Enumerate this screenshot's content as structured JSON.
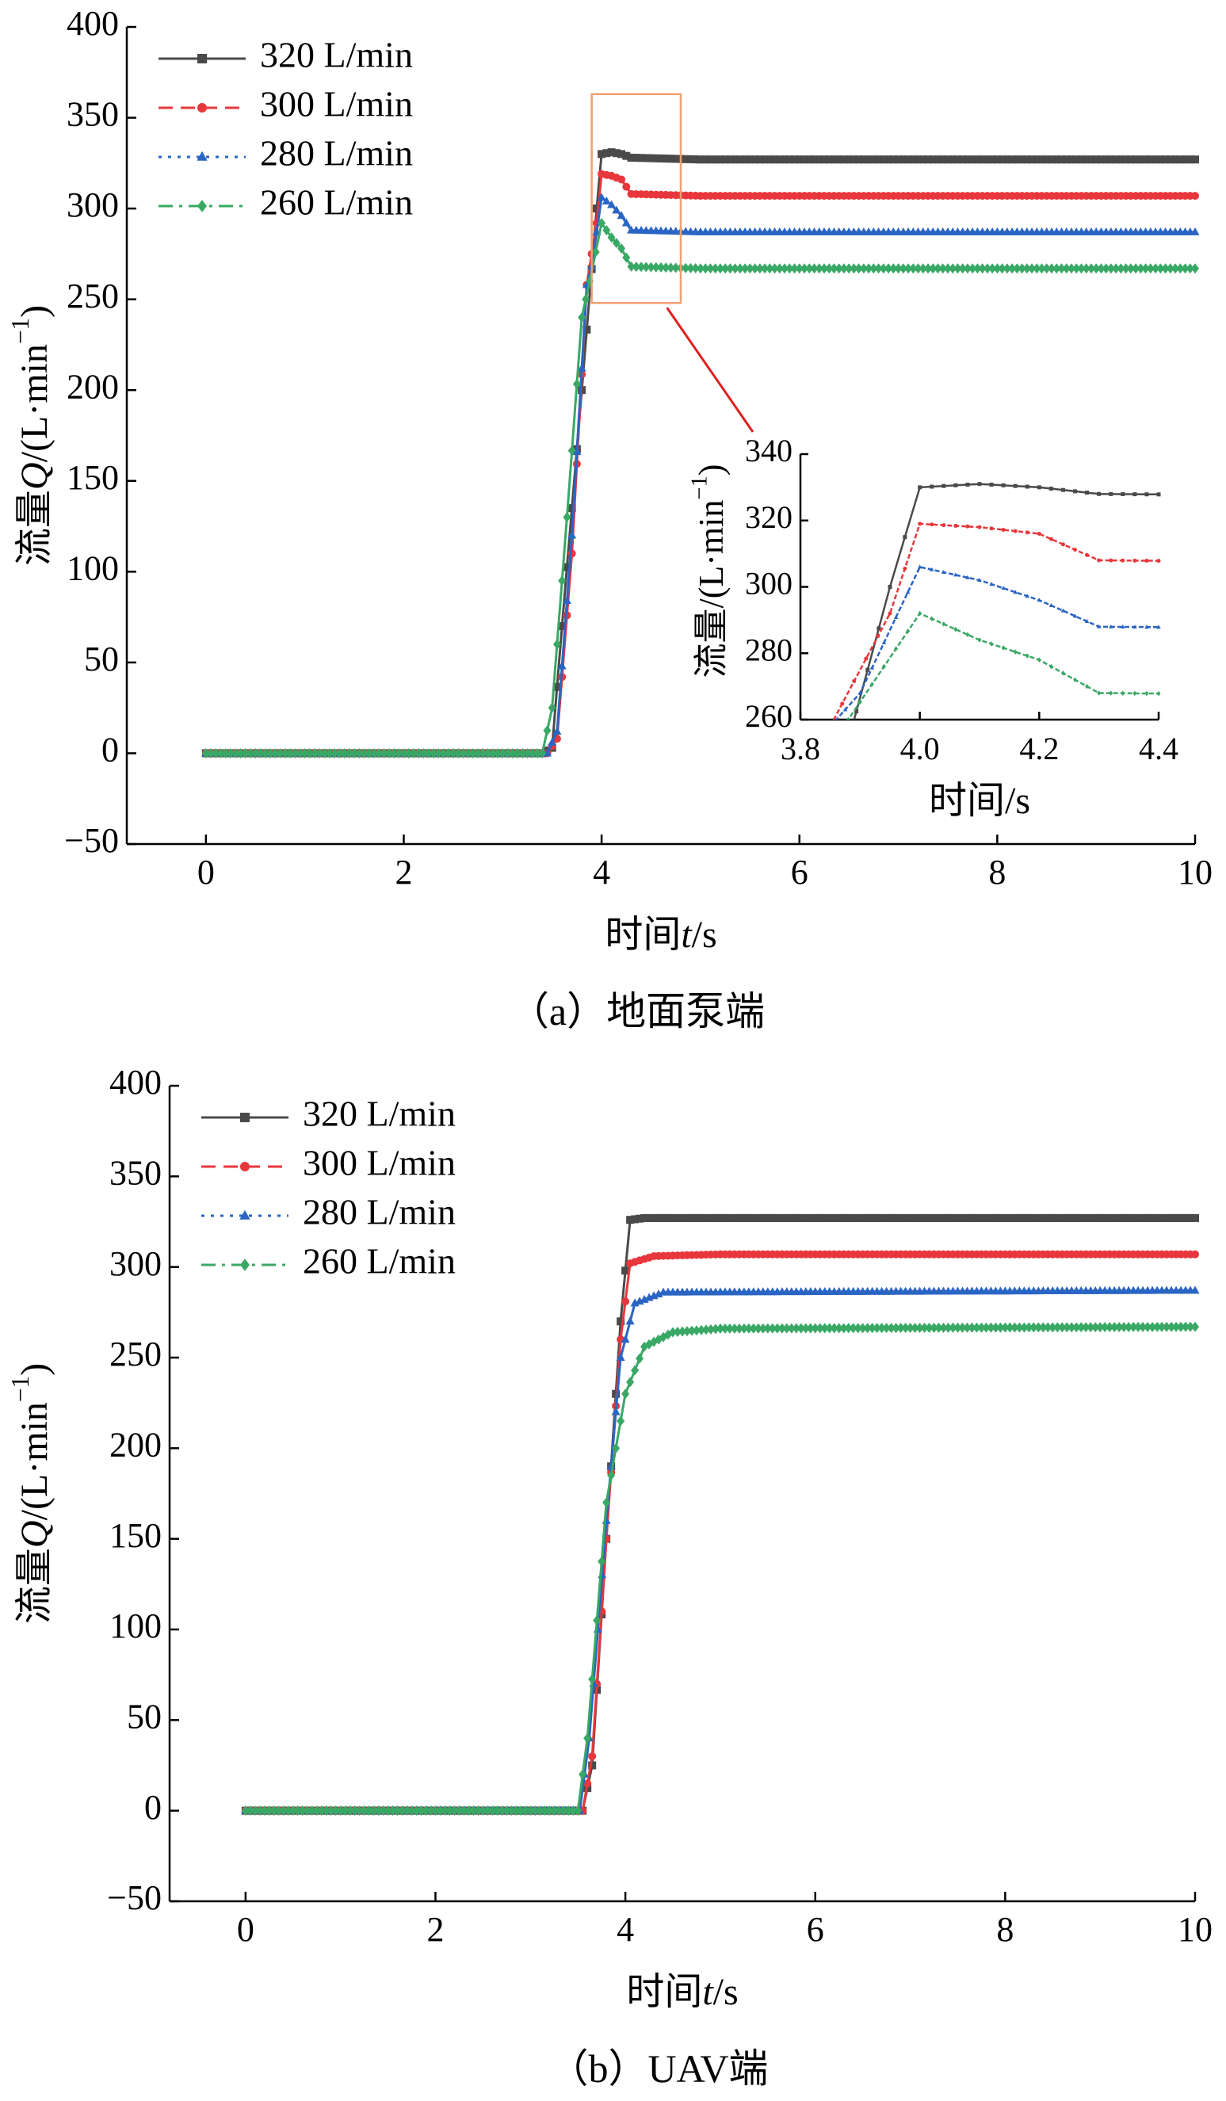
{
  "chart_data": [
    {
      "type": "line",
      "caption": "（a）地面泵端",
      "xlabel": {
        "main": "时间",
        "var": "t",
        "unit": "/s"
      },
      "ylabel": {
        "main": "流量",
        "var": "Q",
        "unit": "/(L·min",
        "sup": "−1",
        "close": ")"
      },
      "xlim": [
        -0.8,
        10
      ],
      "ylim": [
        -50,
        400
      ],
      "xticks": [
        0,
        2,
        4,
        6,
        8,
        10
      ],
      "yticks": [
        -50,
        0,
        50,
        100,
        150,
        200,
        250,
        300,
        350,
        400
      ],
      "legend_position": "top-left",
      "series": [
        {
          "name": "320 L/min",
          "color": "#4a4a4a",
          "marker": "square",
          "dash": "",
          "points": [
            [
              0,
              0
            ],
            [
              3.4,
              0
            ],
            [
              3.5,
              3
            ],
            [
              3.6,
              70
            ],
            [
              3.8,
              200
            ],
            [
              3.95,
              300
            ],
            [
              4.0,
              330
            ],
            [
              4.1,
              331
            ],
            [
              4.2,
              330
            ],
            [
              4.3,
              328
            ],
            [
              5,
              327
            ],
            [
              10,
              327
            ]
          ]
        },
        {
          "name": "300 L/min",
          "color": "#e8373c",
          "marker": "circle",
          "dash": "18 10",
          "points": [
            [
              0,
              0
            ],
            [
              3.45,
              0
            ],
            [
              3.55,
              8
            ],
            [
              3.7,
              110
            ],
            [
              3.85,
              258
            ],
            [
              3.95,
              292
            ],
            [
              4.0,
              319
            ],
            [
              4.1,
              318
            ],
            [
              4.2,
              316
            ],
            [
              4.3,
              308
            ],
            [
              5,
              307
            ],
            [
              10,
              307
            ]
          ]
        },
        {
          "name": "280 L/min",
          "color": "#2a65c4",
          "marker": "triangle",
          "dash": "4 8",
          "points": [
            [
              0,
              0
            ],
            [
              3.45,
              0
            ],
            [
              3.55,
              12
            ],
            [
              3.7,
              120
            ],
            [
              3.85,
              258
            ],
            [
              3.9,
              268
            ],
            [
              4.0,
              306
            ],
            [
              4.1,
              302
            ],
            [
              4.2,
              296
            ],
            [
              4.3,
              288
            ],
            [
              5,
              287
            ],
            [
              10,
              287
            ]
          ]
        },
        {
          "name": "260 L/min",
          "color": "#3aa865",
          "marker": "diamond",
          "dash": "18 8 4 8",
          "points": [
            [
              0,
              0
            ],
            [
              3.4,
              0
            ],
            [
              3.5,
              25
            ],
            [
              3.65,
              130
            ],
            [
              3.8,
              240
            ],
            [
              3.88,
              260
            ],
            [
              4.0,
              292
            ],
            [
              4.1,
              284
            ],
            [
              4.2,
              278
            ],
            [
              4.3,
              268
            ],
            [
              5,
              267
            ],
            [
              10,
              267
            ]
          ]
        }
      ],
      "inset": {
        "xlim": [
          3.8,
          4.4
        ],
        "ylim": [
          260,
          340
        ],
        "xticks": [
          3.8,
          4.0,
          4.2,
          4.4
        ],
        "xticklabels": [
          "3.8",
          "4.0",
          "4.2",
          "4.4"
        ],
        "yticks": [
          260,
          280,
          300,
          320,
          340
        ],
        "xlabel": "时间/s",
        "ylabel": {
          "main": "流量",
          "unit": "/(L·min",
          "sup": "−1",
          "close": ")"
        }
      }
    },
    {
      "type": "line",
      "caption": "（b）UAV端",
      "xlabel": {
        "main": "时间",
        "var": "t",
        "unit": "/s"
      },
      "ylabel": {
        "main": "流量",
        "var": "Q",
        "unit": "/(L·min",
        "sup": "−1",
        "close": ")"
      },
      "xlim": [
        -0.8,
        10
      ],
      "ylim": [
        -50,
        400
      ],
      "xticks": [
        0,
        2,
        4,
        6,
        8,
        10
      ],
      "yticks": [
        -50,
        0,
        50,
        100,
        150,
        200,
        250,
        300,
        350,
        400
      ],
      "legend_position": "top-left",
      "series": [
        {
          "name": "320 L/min",
          "color": "#4a4a4a",
          "marker": "square",
          "dash": "",
          "points": [
            [
              0,
              0
            ],
            [
              3.55,
              0
            ],
            [
              3.65,
              25
            ],
            [
              3.8,
              150
            ],
            [
              3.95,
              270
            ],
            [
              4.05,
              326
            ],
            [
              4.2,
              327
            ],
            [
              10,
              327
            ]
          ]
        },
        {
          "name": "300 L/min",
          "color": "#e8373c",
          "marker": "circle",
          "dash": "18 10",
          "points": [
            [
              0,
              0
            ],
            [
              3.55,
              0
            ],
            [
              3.65,
              30
            ],
            [
              3.8,
              150
            ],
            [
              3.95,
              260
            ],
            [
              4.05,
              302
            ],
            [
              4.3,
              306
            ],
            [
              5,
              307
            ],
            [
              10,
              307
            ]
          ]
        },
        {
          "name": "280 L/min",
          "color": "#2a65c4",
          "marker": "triangle",
          "dash": "4 8",
          "points": [
            [
              0,
              0
            ],
            [
              3.52,
              0
            ],
            [
              3.62,
              40
            ],
            [
              3.8,
              160
            ],
            [
              3.95,
              250
            ],
            [
              4.1,
              280
            ],
            [
              4.4,
              286
            ],
            [
              10,
              287
            ]
          ]
        },
        {
          "name": "260 L/min",
          "color": "#3aa865",
          "marker": "diamond",
          "dash": "18 8 4 8",
          "points": [
            [
              0,
              0
            ],
            [
              3.5,
              0
            ],
            [
              3.6,
              40
            ],
            [
              3.8,
              170
            ],
            [
              4.0,
              230
            ],
            [
              4.2,
              256
            ],
            [
              4.5,
              264
            ],
            [
              5,
              266
            ],
            [
              10,
              267
            ]
          ]
        }
      ]
    }
  ]
}
